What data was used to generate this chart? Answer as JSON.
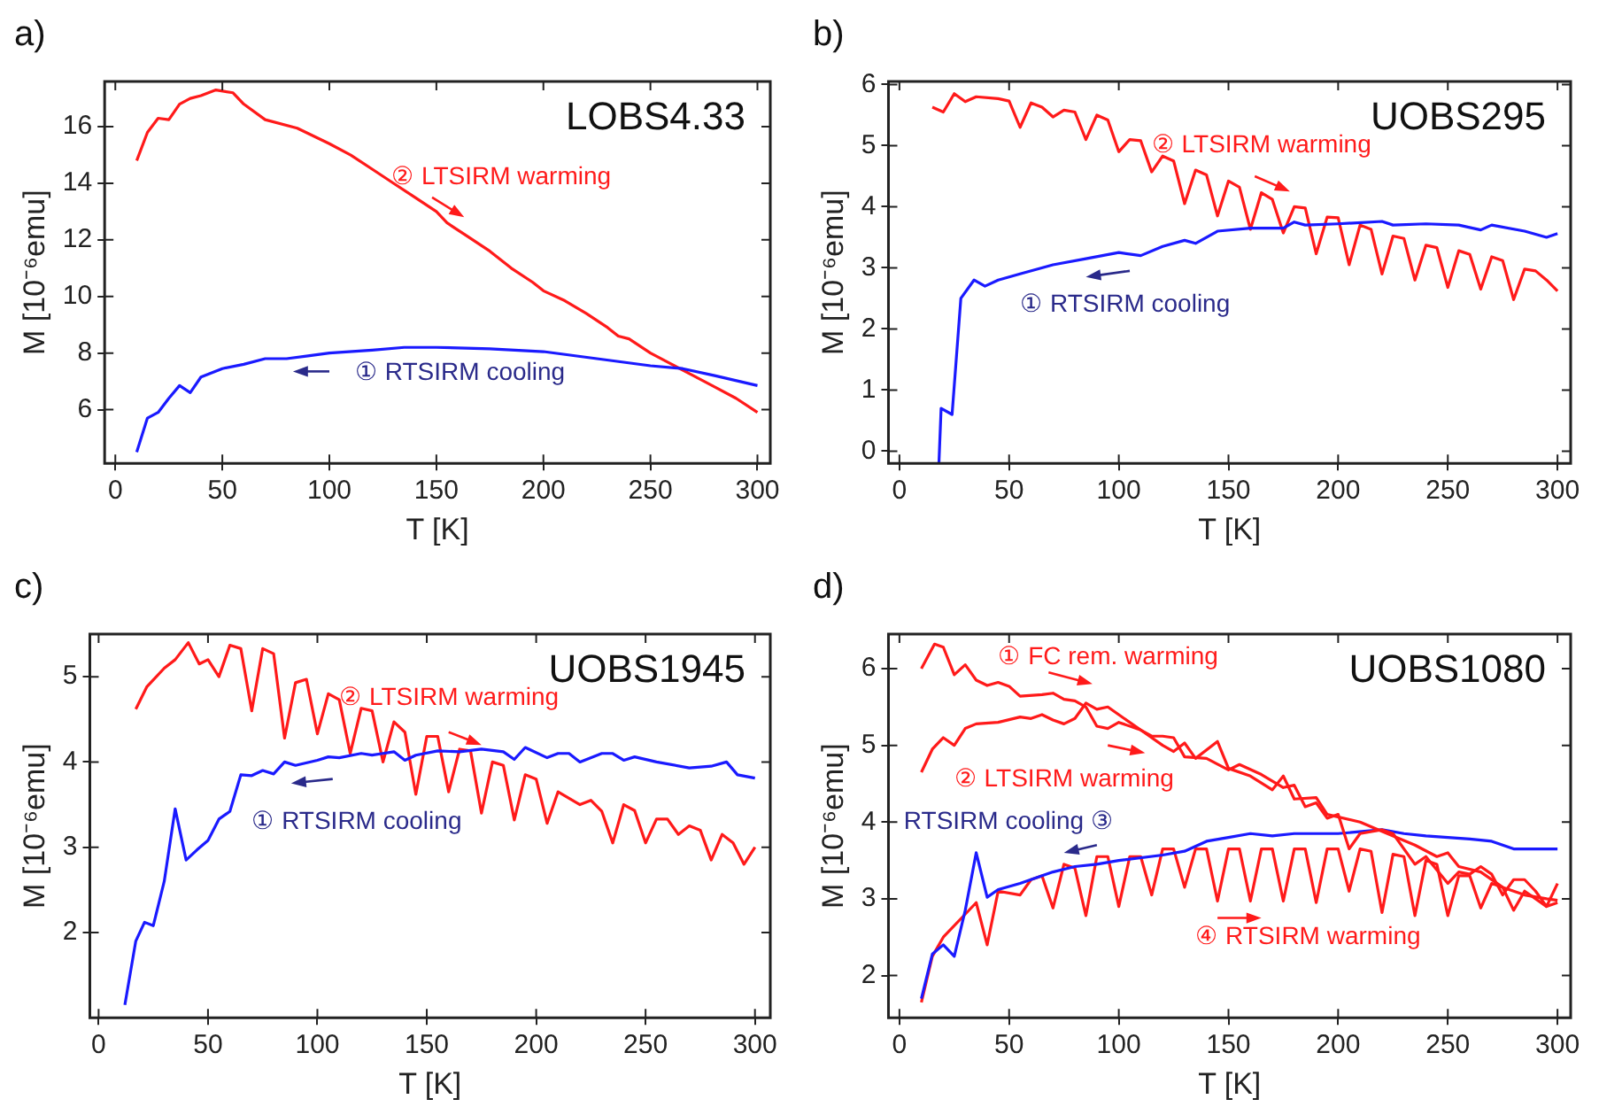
{
  "chart_data": [
    {
      "type": "line",
      "title": "a)",
      "xlabel": "T [K]",
      "ylabel": "M [10⁻⁶emu]",
      "xlim": [
        -5,
        306
      ],
      "ylim": [
        4.1,
        17.6
      ],
      "xticks": [
        0,
        50,
        100,
        150,
        200,
        250,
        300
      ],
      "yticks": [
        6,
        8,
        10,
        12,
        14,
        16
      ],
      "grid": false,
      "legend": false,
      "annotations": [
        "LOBS4.33"
      ],
      "series": [
        {
          "name": "① RTSIRM cooling",
          "color": "#1a1aff",
          "x": [
            10,
            15,
            20,
            25,
            30,
            35,
            40,
            50,
            60,
            70,
            80,
            90,
            100,
            120,
            135,
            150,
            175,
            200,
            225,
            250,
            265,
            280,
            300
          ],
          "values": [
            4.5,
            5.7,
            5.9,
            6.4,
            6.85,
            6.6,
            7.15,
            7.45,
            7.6,
            7.8,
            7.8,
            7.9,
            8.0,
            8.1,
            8.2,
            8.2,
            8.15,
            8.05,
            7.8,
            7.55,
            7.45,
            7.2,
            6.85
          ]
        },
        {
          "name": "② LTSIRM warming",
          "color": "#ff1a1a",
          "x": [
            10,
            15,
            20,
            25,
            30,
            35,
            40,
            47,
            55,
            60,
            70,
            85,
            100,
            110,
            120,
            130,
            140,
            150,
            155,
            165,
            175,
            185,
            195,
            200,
            210,
            220,
            230,
            235,
            240,
            250,
            260,
            270,
            280,
            290,
            300
          ],
          "values": [
            14.8,
            15.8,
            16.3,
            16.25,
            16.8,
            17.0,
            17.1,
            17.3,
            17.2,
            16.8,
            16.25,
            15.95,
            15.4,
            15.0,
            14.5,
            14.0,
            13.5,
            13.0,
            12.6,
            12.1,
            11.6,
            11.0,
            10.5,
            10.2,
            9.85,
            9.4,
            8.9,
            8.6,
            8.5,
            8.0,
            7.6,
            7.2,
            6.8,
            6.4,
            5.9
          ]
        }
      ]
    },
    {
      "type": "line",
      "title": "b)",
      "xlabel": "T [K]",
      "ylabel": "M [10⁻⁶emu]",
      "xlim": [
        -5,
        306
      ],
      "ylim": [
        -0.2,
        6.05
      ],
      "xticks": [
        0,
        50,
        100,
        150,
        200,
        250,
        300
      ],
      "yticks": [
        0,
        1,
        2,
        3,
        4,
        5,
        6
      ],
      "grid": false,
      "legend": false,
      "annotations": [
        "UOBS295"
      ],
      "series": [
        {
          "name": "① RTSIRM cooling",
          "color": "#1a1aff",
          "x": [
            18,
            19,
            24,
            28,
            34,
            39,
            45,
            55,
            70,
            85,
            100,
            110,
            120,
            130,
            135,
            145,
            160,
            175,
            180,
            185,
            200,
            220,
            225,
            240,
            255,
            265,
            270,
            285,
            295,
            300
          ],
          "values": [
            -0.2,
            0.7,
            0.6,
            2.5,
            2.8,
            2.7,
            2.8,
            2.9,
            3.05,
            3.15,
            3.25,
            3.2,
            3.35,
            3.45,
            3.4,
            3.6,
            3.65,
            3.65,
            3.75,
            3.7,
            3.72,
            3.76,
            3.7,
            3.72,
            3.7,
            3.62,
            3.7,
            3.6,
            3.5,
            3.56
          ]
        },
        {
          "name": "② LTSIRM warming",
          "color": "#ff1a1a",
          "x": [
            15,
            20,
            25,
            30,
            35,
            45,
            50,
            55,
            60,
            65,
            70,
            75,
            80,
            85,
            90,
            95,
            100,
            105,
            110,
            115,
            120,
            125,
            130,
            135,
            140,
            145,
            150,
            155,
            160,
            165,
            170,
            175,
            180,
            185,
            190,
            195,
            200,
            205,
            210,
            215,
            220,
            225,
            230,
            235,
            240,
            245,
            250,
            255,
            260,
            265,
            270,
            275,
            280,
            285,
            290,
            295,
            300
          ],
          "values": [
            5.63,
            5.55,
            5.85,
            5.72,
            5.8,
            5.77,
            5.73,
            5.3,
            5.7,
            5.63,
            5.47,
            5.58,
            5.55,
            5.1,
            5.5,
            5.42,
            4.9,
            5.1,
            5.08,
            4.57,
            4.83,
            4.75,
            4.05,
            4.6,
            4.52,
            3.85,
            4.42,
            4.32,
            3.63,
            4.23,
            4.12,
            3.57,
            4.0,
            3.98,
            3.23,
            3.83,
            3.82,
            3.05,
            3.7,
            3.63,
            2.9,
            3.52,
            3.48,
            2.8,
            3.37,
            3.33,
            2.68,
            3.28,
            3.22,
            2.65,
            3.18,
            3.12,
            2.48,
            2.98,
            2.95,
            2.8,
            2.62
          ]
        }
      ]
    },
    {
      "type": "line",
      "title": "c)",
      "xlabel": "T [K]",
      "ylabel": "M [10⁻⁶emu]",
      "xlim": [
        -4,
        307
      ],
      "ylim": [
        1.0,
        5.5
      ],
      "xticks": [
        0,
        50,
        100,
        150,
        200,
        250,
        300
      ],
      "yticks": [
        2,
        3,
        4,
        5
      ],
      "grid": false,
      "legend": false,
      "annotations": [
        "UOBS1945"
      ],
      "series": [
        {
          "name": "① RTSIRM cooling",
          "color": "#1a1aff",
          "x": [
            12,
            17,
            21,
            25,
            30,
            35,
            40,
            45,
            50,
            55,
            60,
            65,
            70,
            75,
            80,
            85,
            90,
            100,
            105,
            110,
            120,
            125,
            130,
            135,
            140,
            145,
            155,
            165,
            175,
            185,
            190,
            195,
            205,
            210,
            215,
            220,
            230,
            235,
            240,
            245,
            255,
            270,
            280,
            287,
            292,
            300
          ],
          "values": [
            1.15,
            1.9,
            2.12,
            2.08,
            2.6,
            3.45,
            2.85,
            2.97,
            3.08,
            3.33,
            3.42,
            3.85,
            3.84,
            3.9,
            3.86,
            4.0,
            3.96,
            4.02,
            4.06,
            4.05,
            4.1,
            4.08,
            4.1,
            4.12,
            4.02,
            4.08,
            4.13,
            4.12,
            4.15,
            4.12,
            4.03,
            4.17,
            4.05,
            4.1,
            4.1,
            4.0,
            4.1,
            4.1,
            4.02,
            4.06,
            4.0,
            3.93,
            3.95,
            4.0,
            3.85,
            3.81
          ]
        },
        {
          "name": "② LTSIRM warming",
          "color": "#ff1a1a",
          "x": [
            17,
            22,
            30,
            35,
            41,
            46,
            50,
            55,
            60,
            65,
            70,
            75,
            80,
            85,
            90,
            95,
            100,
            105,
            110,
            115,
            120,
            125,
            130,
            135,
            140,
            145,
            150,
            155,
            160,
            165,
            170,
            175,
            180,
            185,
            190,
            195,
            200,
            205,
            210,
            220,
            225,
            230,
            235,
            240,
            245,
            250,
            255,
            260,
            265,
            270,
            275,
            280,
            285,
            290,
            295,
            300
          ],
          "values": [
            4.62,
            4.88,
            5.1,
            5.2,
            5.4,
            5.15,
            5.2,
            5.0,
            5.37,
            5.33,
            4.6,
            5.33,
            5.27,
            4.28,
            4.93,
            4.97,
            4.33,
            4.8,
            4.73,
            4.1,
            4.63,
            4.6,
            4.0,
            4.47,
            4.35,
            3.62,
            4.3,
            4.3,
            3.65,
            4.15,
            4.13,
            3.4,
            4.0,
            3.96,
            3.32,
            3.85,
            3.8,
            3.28,
            3.65,
            3.5,
            3.55,
            3.42,
            3.05,
            3.5,
            3.43,
            3.05,
            3.33,
            3.33,
            3.15,
            3.25,
            3.2,
            2.85,
            3.15,
            3.05,
            2.8,
            3.0
          ]
        }
      ]
    },
    {
      "type": "line",
      "title": "d)",
      "xlabel": "T [K]",
      "ylabel": "M [10⁻⁶emu]",
      "xlim": [
        -5,
        306
      ],
      "ylim": [
        1.45,
        6.45
      ],
      "xticks": [
        0,
        50,
        100,
        150,
        200,
        250,
        300
      ],
      "yticks": [
        2,
        3,
        4,
        5,
        6
      ],
      "grid": false,
      "legend": "center",
      "annotations": [
        "UOBS1080"
      ],
      "series": [
        {
          "name": "① FC rem. warming",
          "color": "#ff1a1a",
          "x": [
            10,
            16,
            20,
            25,
            30,
            35,
            40,
            45,
            50,
            55,
            65,
            70,
            75,
            80,
            85,
            90,
            95,
            100,
            110,
            115,
            120,
            125,
            130,
            140,
            150,
            155,
            165,
            175,
            180,
            185,
            190,
            195,
            200,
            205,
            210,
            220,
            225,
            235,
            240,
            250,
            255,
            260,
            265,
            270,
            275,
            280,
            285,
            290,
            295,
            300
          ],
          "values": [
            6.0,
            6.32,
            6.28,
            5.92,
            6.05,
            5.85,
            5.78,
            5.82,
            5.77,
            5.64,
            5.66,
            5.68,
            5.6,
            5.58,
            5.5,
            5.25,
            5.22,
            5.3,
            5.2,
            5.12,
            5.12,
            5.1,
            4.85,
            4.83,
            4.68,
            4.75,
            4.62,
            4.45,
            4.48,
            4.2,
            4.25,
            4.05,
            4.1,
            3.65,
            3.85,
            3.9,
            3.85,
            3.45,
            3.55,
            3.2,
            3.35,
            3.32,
            3.42,
            3.32,
            3.05,
            3.25,
            3.25,
            3.1,
            2.9,
            3.2
          ]
        },
        {
          "name": "② LTSIRM warming",
          "color": "#ff1a1a",
          "x": [
            10,
            15,
            20,
            25,
            30,
            35,
            45,
            55,
            60,
            65,
            70,
            75,
            80,
            85,
            90,
            95,
            100,
            110,
            120,
            125,
            130,
            135,
            145,
            150,
            160,
            170,
            175,
            180,
            190,
            195,
            210,
            220,
            235,
            245,
            250,
            255,
            265,
            275,
            285,
            295,
            300
          ],
          "values": [
            4.65,
            4.95,
            5.1,
            5.0,
            5.22,
            5.28,
            5.3,
            5.37,
            5.35,
            5.4,
            5.33,
            5.28,
            5.35,
            5.55,
            5.47,
            5.5,
            5.4,
            5.2,
            5.0,
            4.92,
            5.03,
            4.83,
            5.05,
            4.7,
            4.6,
            4.42,
            4.6,
            4.3,
            4.32,
            4.1,
            4.0,
            3.88,
            3.7,
            3.55,
            3.6,
            3.42,
            3.35,
            3.15,
            3.05,
            3.0,
            2.98
          ]
        },
        {
          "name": "RTSIRM cooling ③",
          "color": "#1a1aff",
          "x": [
            10,
            15,
            20,
            25,
            30,
            35,
            40,
            45,
            55,
            70,
            80,
            90,
            100,
            120,
            130,
            140,
            150,
            160,
            170,
            180,
            200,
            220,
            230,
            240,
            250,
            260,
            270,
            280,
            300
          ],
          "values": [
            1.7,
            2.28,
            2.4,
            2.25,
            2.85,
            3.6,
            3.02,
            3.12,
            3.2,
            3.35,
            3.42,
            3.45,
            3.5,
            3.57,
            3.62,
            3.75,
            3.8,
            3.85,
            3.82,
            3.85,
            3.85,
            3.9,
            3.85,
            3.82,
            3.8,
            3.78,
            3.75,
            3.65,
            3.65
          ]
        },
        {
          "name": "④ RTSIRM warming",
          "color": "#ff1a1a",
          "x": [
            10,
            15,
            20,
            30,
            35,
            40,
            45,
            55,
            60,
            65,
            70,
            75,
            80,
            85,
            90,
            95,
            100,
            105,
            110,
            115,
            120,
            125,
            130,
            135,
            140,
            145,
            150,
            155,
            160,
            165,
            170,
            175,
            180,
            185,
            190,
            195,
            200,
            205,
            210,
            215,
            220,
            225,
            230,
            235,
            240,
            245,
            250,
            255,
            260,
            265,
            270,
            275,
            280,
            285,
            290,
            295,
            300
          ],
          "values": [
            1.65,
            2.25,
            2.5,
            2.8,
            2.95,
            2.4,
            3.1,
            3.05,
            3.25,
            3.3,
            2.88,
            3.45,
            3.4,
            2.78,
            3.55,
            3.55,
            2.9,
            3.55,
            3.55,
            3.05,
            3.65,
            3.65,
            3.15,
            3.65,
            3.65,
            2.97,
            3.65,
            3.65,
            2.97,
            3.65,
            3.65,
            2.97,
            3.65,
            3.65,
            2.95,
            3.65,
            3.65,
            3.1,
            3.65,
            3.62,
            2.82,
            3.58,
            3.55,
            2.78,
            3.5,
            3.45,
            2.78,
            3.3,
            3.3,
            2.88,
            3.2,
            3.15,
            2.85,
            3.1,
            3.0,
            2.9,
            2.95
          ]
        }
      ]
    }
  ]
}
